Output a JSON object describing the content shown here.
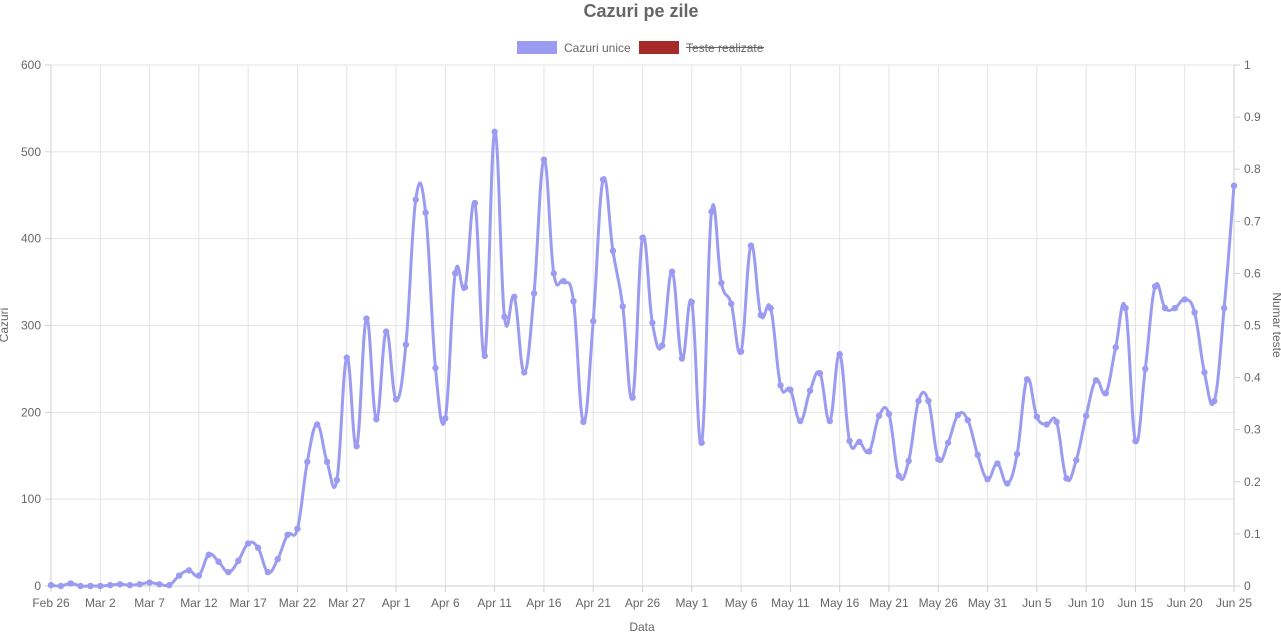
{
  "chart_data": {
    "type": "line",
    "title": "Cazuri pe zile",
    "xlabel": "Data",
    "ylabel": "Cazuri",
    "y2label": "Numar teste",
    "ylim": [
      0,
      600
    ],
    "y2lim": [
      0,
      1
    ],
    "y_ticks": [
      "0",
      "100",
      "200",
      "300",
      "400",
      "500",
      "600"
    ],
    "y2_ticks": [
      "0",
      "0.1",
      "0.2",
      "0.3",
      "0.4",
      "0.5",
      "0.6",
      "0.7",
      "0.8",
      "0.9",
      "1"
    ],
    "x_ticks": [
      "Feb 26",
      "Mar 2",
      "Mar 7",
      "Mar 12",
      "Mar 17",
      "Mar 22",
      "Mar 27",
      "Apr 1",
      "Apr 6",
      "Apr 11",
      "Apr 16",
      "Apr 21",
      "Apr 26",
      "May 1",
      "May 6",
      "May 11",
      "May 16",
      "May 21",
      "May 26",
      "May 31",
      "Jun 5",
      "Jun 10",
      "Jun 15",
      "Jun 20",
      "Jun 25"
    ],
    "x_start": "Feb 26",
    "x_end": "Jun 25",
    "grid": true,
    "legend_position": "top",
    "series": [
      {
        "name": "Cazuri unice",
        "color": "#9b9bf2",
        "hidden": false,
        "values": [
          1,
          0,
          3,
          0,
          0,
          0,
          1,
          2,
          1,
          2,
          4,
          2,
          1,
          12,
          18,
          12,
          36,
          28,
          16,
          29,
          49,
          44,
          16,
          31,
          59,
          66,
          143,
          186,
          143,
          122,
          263,
          161,
          308,
          192,
          293,
          215,
          278,
          445,
          430,
          251,
          193,
          360,
          344,
          441,
          265,
          523,
          310,
          333,
          246,
          337,
          491,
          360,
          351,
          328,
          189,
          305,
          468,
          386,
          322,
          217,
          401,
          303,
          277,
          362,
          262,
          327,
          165,
          431,
          349,
          325,
          270,
          392,
          312,
          320,
          231,
          226,
          190,
          225,
          245,
          190,
          267,
          167,
          166,
          155,
          196,
          198,
          127,
          144,
          213,
          213,
          146,
          165,
          197,
          191,
          151,
          123,
          141,
          118,
          152,
          238,
          195,
          186,
          189,
          124,
          145,
          196,
          237,
          222,
          275,
          320,
          167,
          250,
          345,
          320,
          320,
          330,
          315,
          246,
          213,
          320,
          461
        ]
      },
      {
        "name": "Teste realizate",
        "color": "#a52a2a",
        "hidden": true,
        "values": []
      }
    ]
  }
}
